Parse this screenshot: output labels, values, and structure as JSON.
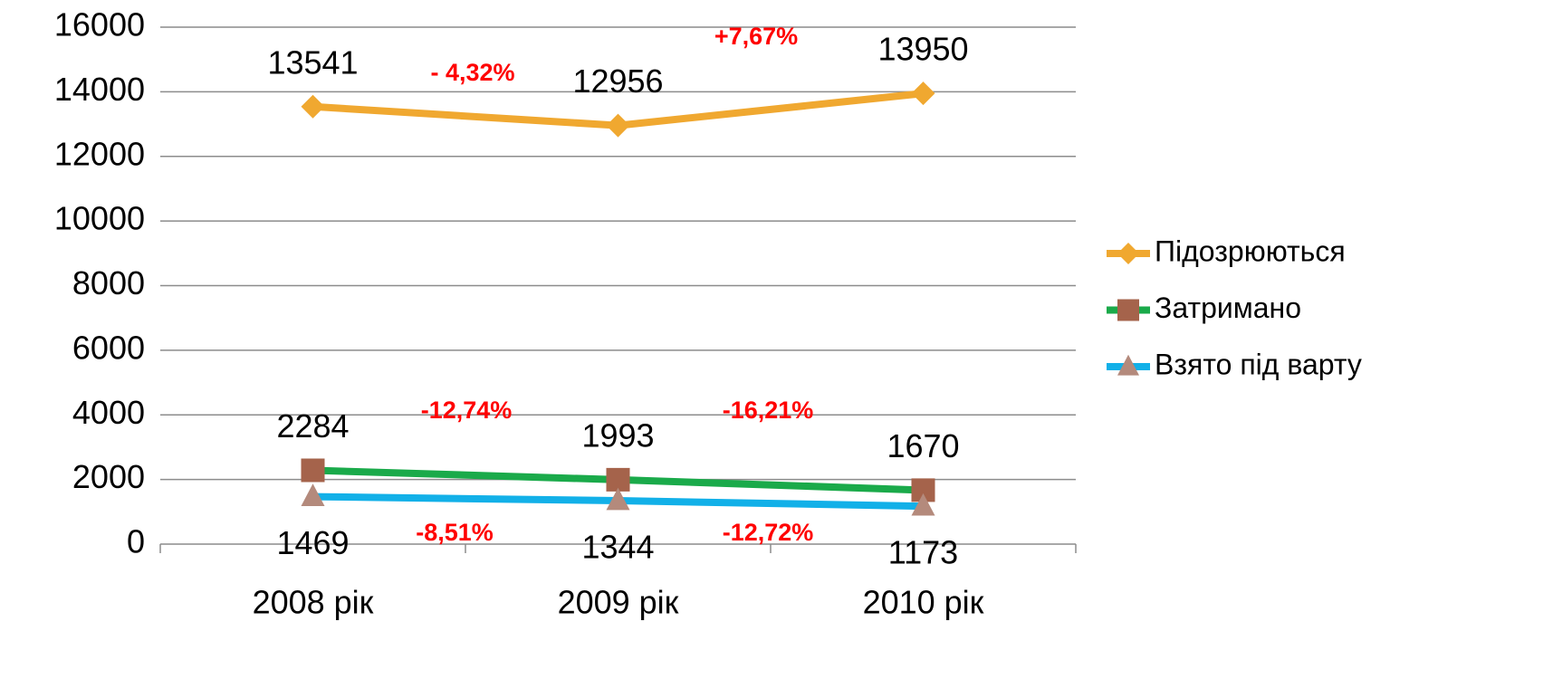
{
  "chart_data": {
    "type": "line",
    "categories": [
      "2008 рік",
      "2009 рік",
      "2010 рік"
    ],
    "series": [
      {
        "name": "Підозрюються",
        "color": "#f0a830",
        "marker": "diamond",
        "marker_color": "#f0a830",
        "label_position": "above",
        "values": [
          13541,
          12956,
          13950
        ]
      },
      {
        "name": "Затримано",
        "color": "#1aaa4a",
        "marker": "square",
        "marker_color": "#a5634b",
        "label_position": "above",
        "values": [
          2284,
          1993,
          1670
        ]
      },
      {
        "name": "Взято під варту",
        "color": "#12b0e8",
        "marker": "triangle",
        "marker_color": "#b48a7c",
        "label_position": "below",
        "values": [
          1469,
          1344,
          1173
        ]
      }
    ],
    "annotations": [
      "- 4,32%",
      "+7,67%",
      "-12,74%",
      "-16,21%",
      "-8,51%",
      "-12,72%"
    ],
    "annotation_color": "#ff0000",
    "ylim": [
      0,
      16000
    ],
    "yticks": [
      0,
      2000,
      4000,
      6000,
      8000,
      10000,
      12000,
      14000,
      16000
    ],
    "grid": true,
    "legend": "right"
  }
}
